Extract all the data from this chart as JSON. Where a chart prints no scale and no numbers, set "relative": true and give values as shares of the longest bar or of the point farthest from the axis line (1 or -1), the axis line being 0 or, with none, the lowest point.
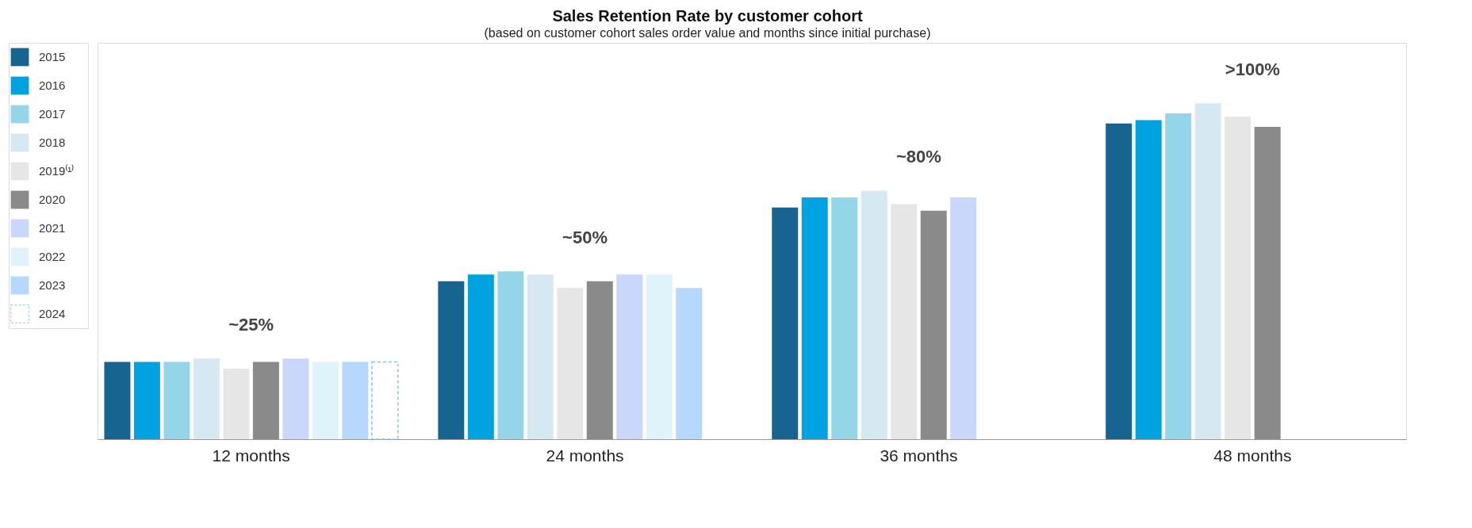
{
  "chart_data": {
    "type": "bar",
    "title": "Sales Retention Rate by customer cohort",
    "subtitle": "(based on customer cohort sales order value and months since initial purchase)",
    "categories": [
      "12 months",
      "24 months",
      "36 months",
      "48 months"
    ],
    "relative": true,
    "legend": "top left",
    "grid": false,
    "annotations": [
      "~25%",
      "~50%",
      "~80%",
      ">100%"
    ],
    "series": [
      {
        "name": "2015",
        "color": "#176490",
        "values": [
          0.23,
          0.47,
          0.69,
          0.94
        ]
      },
      {
        "name": "2016",
        "color": "#00a3e0",
        "values": [
          0.23,
          0.49,
          0.72,
          0.95
        ]
      },
      {
        "name": "2017",
        "color": "#94d6e8",
        "values": [
          0.23,
          0.5,
          0.72,
          0.97
        ]
      },
      {
        "name": "2018",
        "color": "#d6e9f3",
        "values": [
          0.24,
          0.49,
          0.74,
          1.0
        ]
      },
      {
        "name": "2019⁽¹⁾",
        "color": "#e6e6e6",
        "values": [
          0.21,
          0.45,
          0.7,
          0.96
        ]
      },
      {
        "name": "2020",
        "color": "#8a8a8a",
        "values": [
          0.23,
          0.47,
          0.68,
          0.93
        ]
      },
      {
        "name": "2021",
        "color": "#c9d7fa",
        "values": [
          0.24,
          0.49,
          0.72,
          null
        ]
      },
      {
        "name": "2022",
        "color": "#dff3fb",
        "values": [
          0.23,
          0.49,
          null,
          null
        ]
      },
      {
        "name": "2023",
        "color": "#b5d8fc",
        "values": [
          0.23,
          0.45,
          null,
          null
        ]
      },
      {
        "name": "2024",
        "color": "#7fc4df",
        "line_style": "dashed",
        "values": [
          0.23,
          null,
          null,
          null
        ]
      }
    ]
  }
}
